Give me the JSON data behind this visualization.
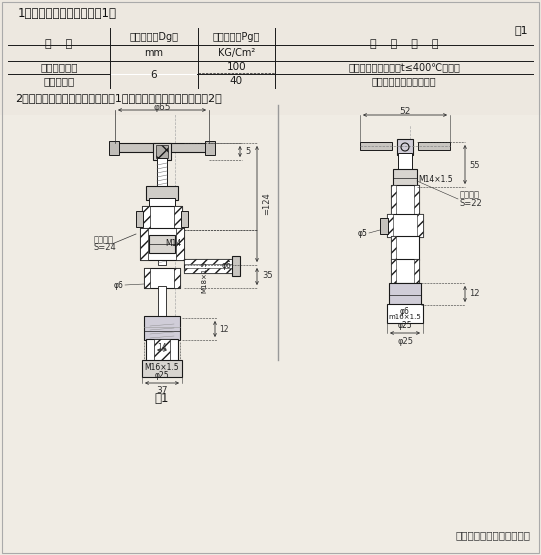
{
  "title_text": "1、试验阀的基本参数按表1。",
  "biao_label": "表1",
  "col_headers": [
    "名    称",
    "公称通径（Dg）\nmm",
    "公称压力（Pg）\nKG/Cm²",
    "适    用    介    质"
  ],
  "row1_name": "不锈锄试验阀",
  "row1_dg": "6",
  "row1_pg": "100",
  "row1_medium": "淡水、滑油、燃油和t≤400℃的蔭汽",
  "row2_name": "青锁试验阀",
  "row2_dg": "6",
  "row2_pg": "40",
  "row2_medium": "淡水、海水、滑油和燃油",
  "note2": "2、不锈锄试验阀的基本尺寸按图1；青锁试验阀的基本尺寸按图2。",
  "fig1_label": "图1",
  "company": "上海康邦阀门制造有限公司",
  "bg_color": "#ede8e0",
  "line_color": "#1a1a1a",
  "dim_color": "#333333"
}
